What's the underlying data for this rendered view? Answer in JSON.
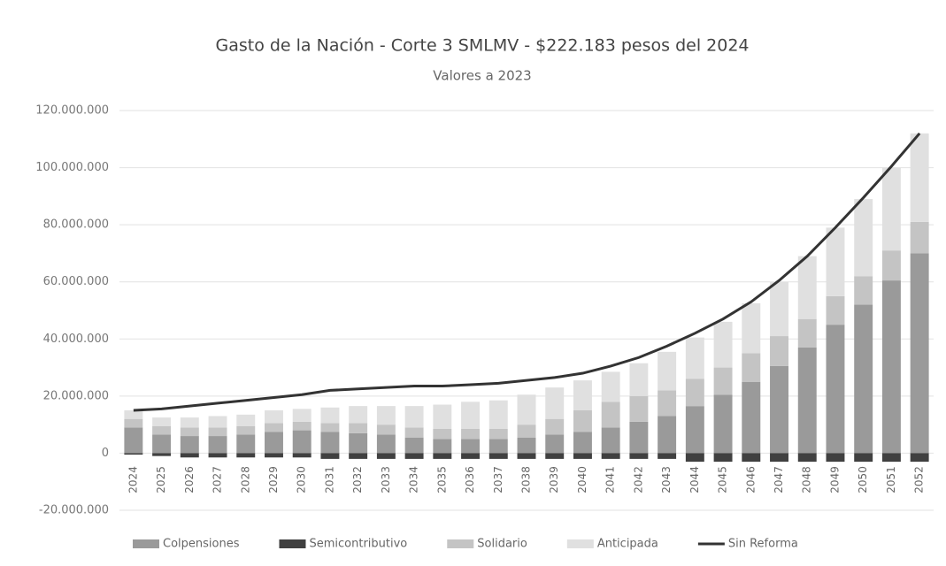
{
  "chart_data": {
    "type": "stacked_bar_line",
    "title": "Gasto de la Nación - Corte 3 SMLMV - $222.183 pesos del 2024",
    "subtitle": "Valores a 2023",
    "categories": [
      "2024",
      "2025",
      "2026",
      "2027",
      "2028",
      "2029",
      "2030",
      "2031",
      "2032",
      "2033",
      "2034",
      "2035",
      "2036",
      "2037",
      "2038",
      "2039",
      "2040",
      "2041",
      "2042",
      "2043",
      "2044",
      "2045",
      "2046",
      "2047",
      "2048",
      "2049",
      "2050",
      "2051",
      "2052"
    ],
    "series": [
      {
        "name": "Colpensiones",
        "color": "#9a9a9a",
        "kind": "bar",
        "values": [
          9000000,
          6500000,
          6000000,
          6000000,
          6500000,
          7500000,
          8000000,
          7500000,
          7000000,
          6500000,
          5500000,
          5000000,
          5000000,
          5000000,
          5500000,
          6500000,
          7500000,
          9000000,
          11000000,
          13000000,
          16500000,
          20500000,
          25000000,
          30500000,
          37000000,
          45000000,
          52000000,
          60500000,
          70000000
        ]
      },
      {
        "name": "Semicontributivo",
        "color": "#404040",
        "kind": "bar",
        "values": [
          -500000,
          -1000000,
          -1500000,
          -1500000,
          -1500000,
          -1500000,
          -1500000,
          -2000000,
          -2000000,
          -2000000,
          -2000000,
          -2000000,
          -2000000,
          -2000000,
          -2000000,
          -2000000,
          -2000000,
          -2000000,
          -2000000,
          -2000000,
          -3000000,
          -3000000,
          -3000000,
          -3000000,
          -3000000,
          -3000000,
          -3000000,
          -3000000,
          -3000000
        ]
      },
      {
        "name": "Solidario",
        "color": "#c4c4c4",
        "kind": "bar",
        "values": [
          3000000,
          3000000,
          3000000,
          3000000,
          3000000,
          3000000,
          3000000,
          3000000,
          3500000,
          3500000,
          3500000,
          3500000,
          3500000,
          3500000,
          4500000,
          5500000,
          7500000,
          9000000,
          9000000,
          9000000,
          9500000,
          9500000,
          10000000,
          10500000,
          10000000,
          10000000,
          10000000,
          10500000,
          11000000
        ]
      },
      {
        "name": "Anticipada",
        "color": "#e0e0e0",
        "kind": "bar",
        "values": [
          3000000,
          3000000,
          3500000,
          4000000,
          4000000,
          4500000,
          4500000,
          5500000,
          6000000,
          6500000,
          7500000,
          8500000,
          9500000,
          10000000,
          10500000,
          11000000,
          10500000,
          10500000,
          11500000,
          13500000,
          14500000,
          16000000,
          17500000,
          19000000,
          22000000,
          24000000,
          27000000,
          29000000,
          31000000
        ]
      },
      {
        "name": "Sin Reforma",
        "color": "#333333",
        "kind": "line",
        "values": [
          15000000,
          15500000,
          16500000,
          17500000,
          18500000,
          19500000,
          20500000,
          22000000,
          22500000,
          23000000,
          23500000,
          23500000,
          24000000,
          24500000,
          25500000,
          26500000,
          28000000,
          30500000,
          33500000,
          37500000,
          42000000,
          47000000,
          53000000,
          60500000,
          69000000,
          79000000,
          89500000,
          100500000,
          112000000
        ]
      }
    ],
    "ylim": [
      -20000000,
      120000000
    ],
    "yticks": [
      {
        "value": -20000000,
        "label": "-20.000.000"
      },
      0,
      {
        "value": 20000000,
        "label": "20.000.000"
      },
      {
        "value": 40000000,
        "label": "40.000.000"
      },
      {
        "value": 60000000,
        "label": "60.000.000"
      },
      {
        "value": 80000000,
        "label": "80.000.000"
      },
      {
        "value": 100000000,
        "label": "100.000.000"
      },
      {
        "value": 120000000,
        "label": "120.000.000"
      }
    ],
    "grid": true,
    "legend": "bottom"
  }
}
